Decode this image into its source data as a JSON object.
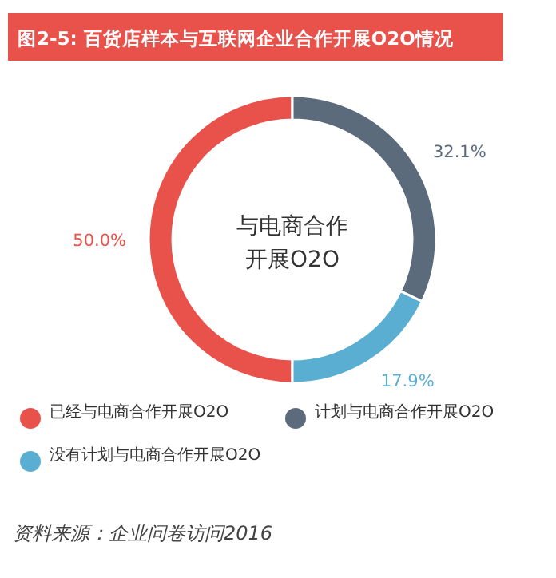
{
  "chart_data": {
    "type": "donut",
    "title": "图2-5: 百货店样本与互联网企业合作开展O2O情况",
    "categories": [
      "已经与电商合作开展O2O",
      "计划与电商合作开展O2O",
      "没有计划与电商合作开展O2O"
    ],
    "values": [
      50.0,
      32.1,
      17.9
    ],
    "colors": [
      "#e8524b",
      "#5b6b7c",
      "#5aaed2"
    ],
    "value_labels": [
      "50.0%",
      "32.1%",
      "17.9%"
    ],
    "legend": "bottom",
    "annotations": [
      "与电商合作",
      "开展O2O",
      "资料来源：企业问卷访问2016"
    ]
  }
}
